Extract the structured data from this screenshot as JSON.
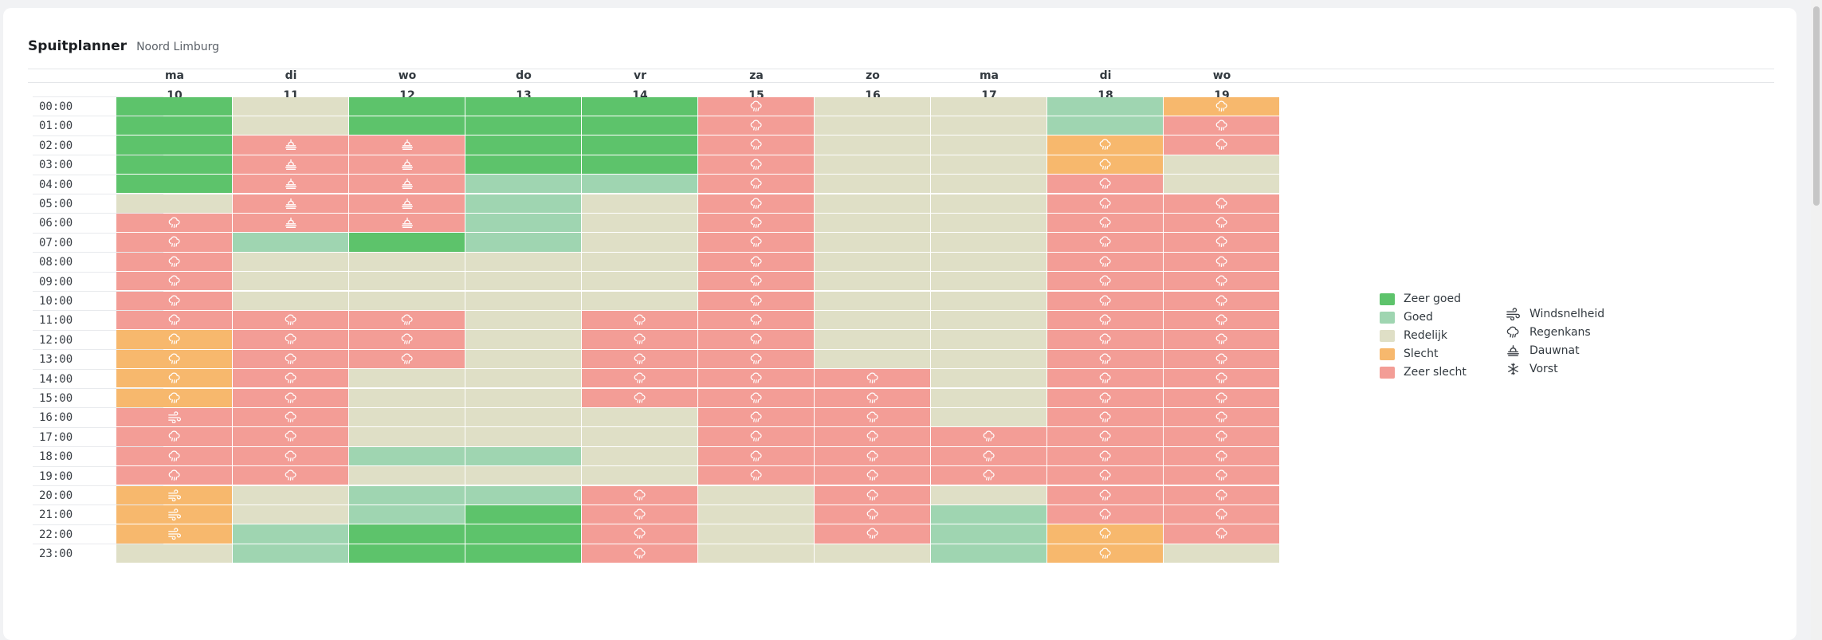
{
  "header": {
    "title": "Spuitplanner",
    "subtitle": "Noord Limburg"
  },
  "colors": {
    "zg": "#5dc36b",
    "g": "#9fd5b1",
    "r": "#dfdfc6",
    "s": "#f7b86d",
    "zs": "#f39d96"
  },
  "days": [
    {
      "name": "ma",
      "date": "10"
    },
    {
      "name": "di",
      "date": "11"
    },
    {
      "name": "wo",
      "date": "12"
    },
    {
      "name": "do",
      "date": "13"
    },
    {
      "name": "vr",
      "date": "14"
    },
    {
      "name": "za",
      "date": "15"
    },
    {
      "name": "zo",
      "date": "16"
    },
    {
      "name": "ma",
      "date": "17"
    },
    {
      "name": "di",
      "date": "18"
    },
    {
      "name": "wo",
      "date": "19"
    }
  ],
  "hours": [
    "00:00",
    "01:00",
    "02:00",
    "03:00",
    "04:00",
    "05:00",
    "06:00",
    "07:00",
    "08:00",
    "09:00",
    "10:00",
    "11:00",
    "12:00",
    "13:00",
    "14:00",
    "15:00",
    "16:00",
    "17:00",
    "18:00",
    "19:00",
    "20:00",
    "21:00",
    "22:00",
    "23:00"
  ],
  "cells": [
    [
      "zg",
      "r",
      "zg",
      "zg",
      "zg",
      "zs:rain",
      "r",
      "r",
      "g",
      "s:rain"
    ],
    [
      "zg",
      "r",
      "zg",
      "zg",
      "zg",
      "zs:rain",
      "r",
      "r",
      "g",
      "zs:rain"
    ],
    [
      "zg",
      "zs:dew",
      "zs:dew",
      "zg",
      "zg",
      "zs:rain",
      "r",
      "r",
      "s:rain",
      "zs:rain"
    ],
    [
      "zg",
      "zs:dew",
      "zs:dew",
      "zg",
      "zg",
      "zs:rain",
      "r",
      "r",
      "s:rain",
      "r"
    ],
    [
      "zg",
      "zs:dew",
      "zs:dew",
      "g",
      "g",
      "zs:rain",
      "r",
      "r",
      "zs:rain",
      "r"
    ],
    [
      "r",
      "zs:dew",
      "zs:dew",
      "g",
      "r",
      "zs:rain",
      "r",
      "r",
      "zs:rain",
      "zs:rain"
    ],
    [
      "zs:rain",
      "zs:dew",
      "zs:dew",
      "g",
      "r",
      "zs:rain",
      "r",
      "r",
      "zs:rain",
      "zs:rain"
    ],
    [
      "zs:rain",
      "g",
      "zg",
      "g",
      "r",
      "zs:rain",
      "r",
      "r",
      "zs:rain",
      "zs:rain"
    ],
    [
      "zs:rain",
      "r",
      "r",
      "r",
      "r",
      "zs:rain",
      "r",
      "r",
      "zs:rain",
      "zs:rain"
    ],
    [
      "zs:rain",
      "r",
      "r",
      "r",
      "r",
      "zs:rain",
      "r",
      "r",
      "zs:rain",
      "zs:rain"
    ],
    [
      "zs:rain",
      "r",
      "r",
      "r",
      "r",
      "zs:rain",
      "r",
      "r",
      "zs:rain",
      "zs:rain"
    ],
    [
      "zs:rain",
      "zs:rain",
      "zs:rain",
      "r",
      "zs:rain",
      "zs:rain",
      "r",
      "r",
      "zs:rain",
      "zs:rain"
    ],
    [
      "s:rain",
      "zs:rain",
      "zs:rain",
      "r",
      "zs:rain",
      "zs:rain",
      "r",
      "r",
      "zs:rain",
      "zs:rain"
    ],
    [
      "s:rain",
      "zs:rain",
      "zs:rain",
      "r",
      "zs:rain",
      "zs:rain",
      "r",
      "r",
      "zs:rain",
      "zs:rain"
    ],
    [
      "s:rain",
      "zs:rain",
      "r",
      "r",
      "zs:rain",
      "zs:rain",
      "zs:rain",
      "r",
      "zs:rain",
      "zs:rain"
    ],
    [
      "s:rain",
      "zs:rain",
      "r",
      "r",
      "zs:rain",
      "zs:rain",
      "zs:rain",
      "r",
      "zs:rain",
      "zs:rain"
    ],
    [
      "zs:wind",
      "zs:rain",
      "r",
      "r",
      "r",
      "zs:rain",
      "zs:rain",
      "r",
      "zs:rain",
      "zs:rain"
    ],
    [
      "zs:rain",
      "zs:rain",
      "r",
      "r",
      "r",
      "zs:rain",
      "zs:rain",
      "zs:rain",
      "zs:rain",
      "zs:rain"
    ],
    [
      "zs:rain",
      "zs:rain",
      "g",
      "g",
      "r",
      "zs:rain",
      "zs:rain",
      "zs:rain",
      "zs:rain",
      "zs:rain"
    ],
    [
      "zs:rain",
      "zs:rain",
      "r",
      "r",
      "r",
      "zs:rain",
      "zs:rain",
      "zs:rain",
      "zs:rain",
      "zs:rain"
    ],
    [
      "s:wind",
      "r",
      "g",
      "g",
      "zs:rain",
      "r",
      "zs:rain",
      "r",
      "zs:rain",
      "zs:rain"
    ],
    [
      "s:wind",
      "r",
      "g",
      "zg",
      "zs:rain",
      "r",
      "zs:rain",
      "g",
      "zs:rain",
      "zs:rain"
    ],
    [
      "s:wind",
      "g",
      "zg",
      "zg",
      "zs:rain",
      "r",
      "zs:rain",
      "g",
      "s:rain",
      "zs:rain"
    ],
    [
      "r",
      "g",
      "zg",
      "zg",
      "zs:rain",
      "r",
      "r",
      "g",
      "s:rain",
      "r"
    ]
  ],
  "legend": {
    "ratings": [
      {
        "key": "zg",
        "label": "Zeer goed"
      },
      {
        "key": "g",
        "label": "Goed"
      },
      {
        "key": "r",
        "label": "Redelijk"
      },
      {
        "key": "s",
        "label": "Slecht"
      },
      {
        "key": "zs",
        "label": "Zeer slecht"
      }
    ],
    "factors": [
      {
        "icon": "wind",
        "label": "Windsnelheid"
      },
      {
        "icon": "rain",
        "label": "Regenkans"
      },
      {
        "icon": "dew",
        "label": "Dauwnat"
      },
      {
        "icon": "frost",
        "label": "Vorst"
      }
    ]
  }
}
